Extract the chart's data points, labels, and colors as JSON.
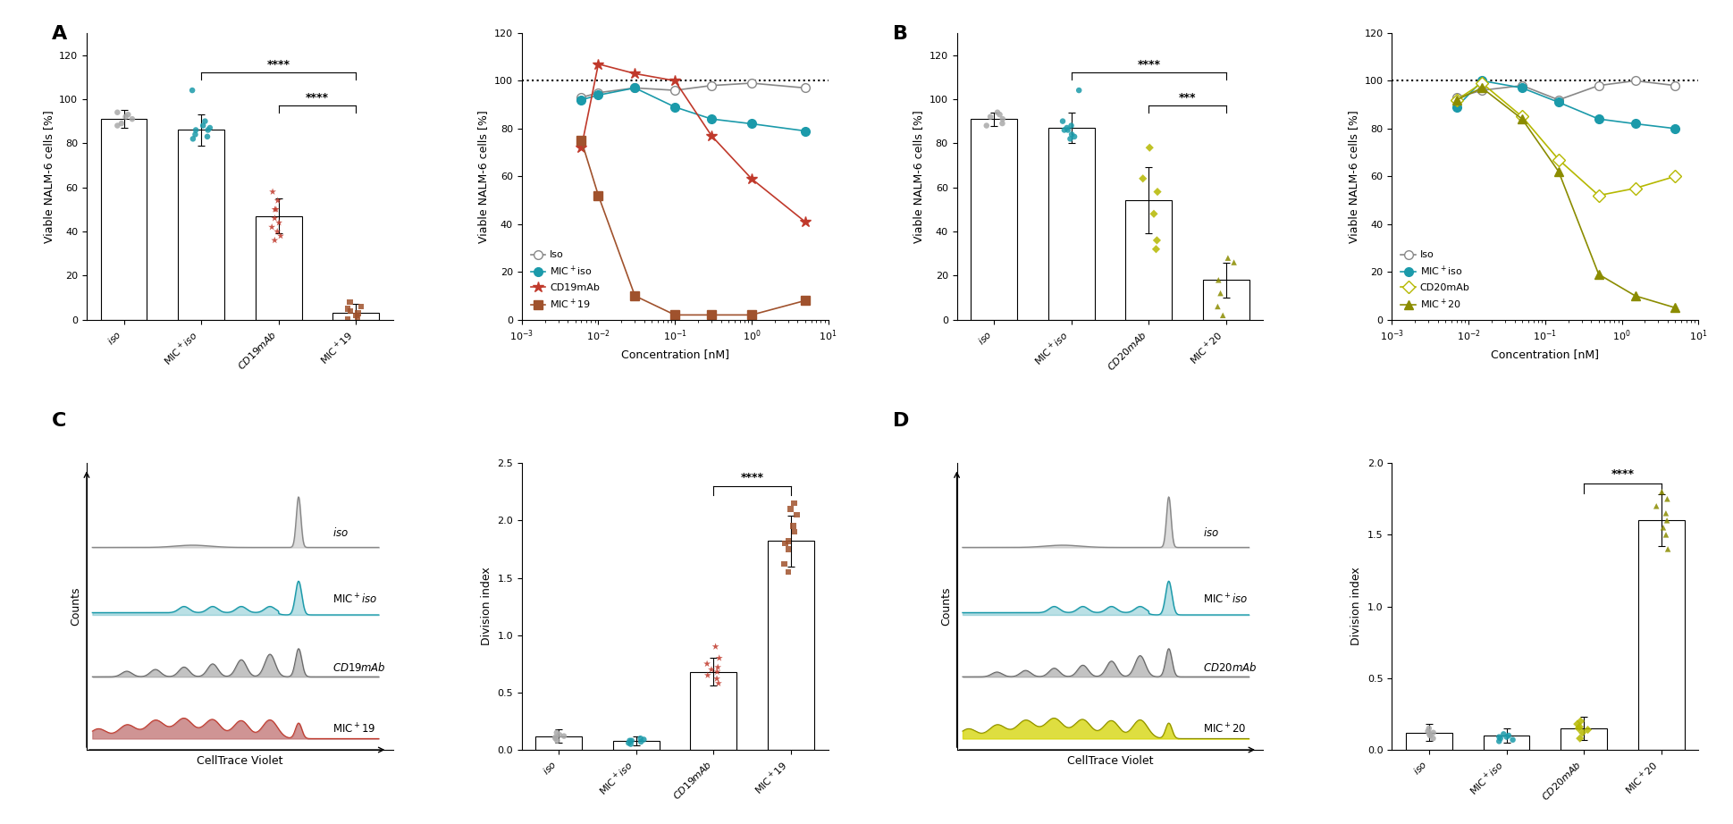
{
  "panel_A_bar": {
    "categories": [
      "iso",
      "MIC+iso",
      "CD19mAb",
      "MIC+19"
    ],
    "means": [
      91,
      86,
      47,
      3
    ],
    "errors": [
      4,
      7,
      8,
      4
    ],
    "scatter_iso": [
      89,
      91,
      93,
      92,
      88,
      94
    ],
    "scatter_mic_iso": [
      82,
      86,
      88,
      90,
      104,
      87,
      83,
      86,
      84
    ],
    "scatter_cd19": [
      58,
      50,
      44,
      40,
      36,
      38,
      42,
      46,
      50,
      54
    ],
    "scatter_mic19": [
      6,
      4,
      2,
      1,
      0,
      3,
      8,
      5
    ],
    "colors": [
      "#aaaaaa",
      "#1b9aaa",
      "#c0392b",
      "#a0522d"
    ],
    "ylabel": "Viable NALM-6 cells [%]",
    "ylim": [
      0,
      130
    ],
    "yticks": [
      0,
      20,
      40,
      60,
      80,
      100,
      120
    ]
  },
  "panel_A_curve": {
    "concentrations": [
      0.006,
      0.01,
      0.03,
      0.1,
      0.3,
      1.0,
      5.0
    ],
    "iso": [
      93,
      95,
      97,
      96,
      98,
      99,
      97
    ],
    "mic_iso": [
      92,
      94,
      97,
      89,
      84,
      82,
      79
    ],
    "cd19mab": [
      72,
      107,
      103,
      100,
      77,
      59,
      41
    ],
    "mic19": [
      75,
      52,
      10,
      2,
      2,
      2,
      8
    ],
    "ylabel": "Viable NALM-6 cells [%]",
    "xlabel": "Concentration [nM]",
    "ylim": [
      0,
      120
    ],
    "yticks": [
      0,
      20,
      40,
      60,
      80,
      100,
      120
    ],
    "colors_iso": "#888888",
    "colors_mic_iso": "#1b9aaa",
    "colors_cd19": "#c0392b",
    "colors_mic19": "#a0522d"
  },
  "panel_B_bar": {
    "categories": [
      "iso",
      "MIC+iso",
      "CD20mAb",
      "MIC+20"
    ],
    "means": [
      91,
      87,
      54,
      18
    ],
    "errors": [
      3,
      7,
      15,
      8
    ],
    "scatter_iso": [
      89,
      91,
      93,
      92,
      88,
      94
    ],
    "scatter_mic_iso": [
      82,
      86,
      88,
      90,
      104,
      87,
      83,
      86,
      84
    ],
    "scatter_cd20": [
      78,
      64,
      58,
      48,
      36,
      32
    ],
    "scatter_mic20": [
      28,
      26,
      18,
      12,
      6,
      2
    ],
    "colors": [
      "#aaaaaa",
      "#1b9aaa",
      "#b5b800",
      "#8b8c00"
    ],
    "ylabel": "Viable NALM-6 cells [%]",
    "ylim": [
      0,
      130
    ],
    "yticks": [
      0,
      20,
      40,
      60,
      80,
      100,
      120
    ]
  },
  "panel_B_curve": {
    "concentrations": [
      0.007,
      0.015,
      0.05,
      0.15,
      0.5,
      1.5,
      5.0
    ],
    "iso": [
      93,
      96,
      98,
      92,
      98,
      100,
      98
    ],
    "mic_iso": [
      89,
      100,
      97,
      91,
      84,
      82,
      80
    ],
    "cd20mab": [
      92,
      99,
      85,
      67,
      52,
      55,
      60
    ],
    "mic20": [
      92,
      97,
      84,
      62,
      19,
      10,
      5
    ],
    "ylabel": "Viable NALM-6 cells [%]",
    "xlabel": "Concentration [nM]",
    "ylim": [
      0,
      120
    ],
    "yticks": [
      0,
      20,
      40,
      60,
      80,
      100,
      120
    ],
    "colors_iso": "#888888",
    "colors_mic_iso": "#1b9aaa",
    "colors_cd20": "#b5b800",
    "colors_mic20": "#8b8c00"
  },
  "panel_C_div": {
    "categories": [
      "iso",
      "MIC+iso",
      "CD19mAb",
      "MIC+19"
    ],
    "means": [
      0.12,
      0.08,
      0.68,
      1.82
    ],
    "errors": [
      0.06,
      0.04,
      0.12,
      0.22
    ],
    "scatter_iso": [
      0.08,
      0.1,
      0.12,
      0.15,
      0.11,
      0.13
    ],
    "scatter_mic_iso": [
      0.05,
      0.07,
      0.08,
      0.09,
      0.1,
      0.08,
      0.06
    ],
    "scatter_cd19": [
      0.58,
      0.62,
      0.68,
      0.72,
      0.75,
      0.7,
      0.65,
      0.8,
      0.9
    ],
    "scatter_mic19": [
      1.55,
      1.62,
      1.75,
      1.82,
      1.9,
      1.95,
      2.05,
      2.1,
      1.8,
      2.15
    ],
    "colors": [
      "#aaaaaa",
      "#1b9aaa",
      "#c0392b",
      "#a0522d"
    ],
    "ylabel": "Division index",
    "ylim": [
      0,
      2.5
    ],
    "yticks": [
      0.0,
      0.5,
      1.0,
      1.5,
      2.0,
      2.5
    ]
  },
  "panel_D_div": {
    "categories": [
      "iso",
      "MIC+iso",
      "CD20mAb",
      "MIC+20"
    ],
    "means": [
      0.12,
      0.1,
      0.15,
      1.6
    ],
    "errors": [
      0.06,
      0.05,
      0.08,
      0.18
    ],
    "scatter_iso": [
      0.08,
      0.1,
      0.12,
      0.15,
      0.11,
      0.13
    ],
    "scatter_mic_iso": [
      0.06,
      0.08,
      0.09,
      0.1,
      0.11,
      0.09,
      0.07
    ],
    "scatter_cd20": [
      0.08,
      0.12,
      0.14,
      0.16,
      0.18,
      0.2,
      0.15
    ],
    "scatter_mic20": [
      1.4,
      1.5,
      1.55,
      1.6,
      1.65,
      1.7,
      1.75,
      1.8
    ],
    "colors": [
      "#aaaaaa",
      "#1b9aaa",
      "#b5b800",
      "#8b8c00"
    ],
    "ylabel": "Division index",
    "ylim": [
      0,
      2.0
    ],
    "yticks": [
      0.0,
      0.5,
      1.0,
      1.5,
      2.0
    ]
  },
  "bg_color": "#ffffff"
}
